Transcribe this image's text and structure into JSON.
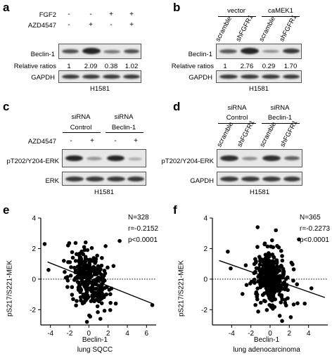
{
  "panels": {
    "a": {
      "letter": "a",
      "conditions": [
        "FGF2",
        "AZD4547"
      ],
      "fgf2_signs": [
        "-",
        "-",
        "+",
        "+"
      ],
      "azd_signs": [
        "-",
        "+",
        "-",
        "+"
      ],
      "row1": "Beclin-1",
      "ratio_label": "Relative ratios",
      "ratios": [
        "1",
        "2.09",
        "0.38",
        "1.02"
      ],
      "row2": "GAPDH",
      "cell_line": "H1581"
    },
    "b": {
      "letter": "b",
      "groups": [
        "vector",
        "caMEK1"
      ],
      "lanes": [
        "scramble",
        "shFGFR1",
        "scramble",
        "shFGFR1"
      ],
      "row1": "Beclin-1",
      "ratio_label": "Relative ratios",
      "ratios": [
        "1",
        "2.76",
        "0.29",
        "1.70"
      ],
      "row2": "GAPDH",
      "cell_line": "H1581"
    },
    "c": {
      "letter": "c",
      "groups": [
        {
          "line1": "siRNA",
          "line2": "Control"
        },
        {
          "line1": "siRNA",
          "line2": "Beclin-1"
        }
      ],
      "condition": "AZD4547",
      "signs": [
        "-",
        "+",
        "-",
        "+"
      ],
      "row1": "pT202/Y204-ERK",
      "row2": "ERK",
      "cell_line": "H1581"
    },
    "d": {
      "letter": "d",
      "groups": [
        {
          "line1": "siRNA",
          "line2": "Control"
        },
        {
          "line1": "siRNA",
          "line2": "Beclin-1"
        }
      ],
      "lanes": [
        "scramble",
        "shFGFR1",
        "scramble",
        "shFGFR1"
      ],
      "row1": "pT202/Y204-ERK",
      "row2": "GAPDH",
      "cell_line": "H1581"
    },
    "e": {
      "letter": "e",
      "ylabel": "pS217/S221-MEK",
      "xlabel1": "Beclin-1",
      "xlabel2": "lung SQCC",
      "stats": [
        "N=328",
        "r=-0.2152",
        "p<0.0001"
      ]
    },
    "f": {
      "letter": "f",
      "ylabel": "pS217/S221-MEK",
      "xlabel1": "Beclin-1",
      "xlabel2": "lung adenocarcinoma",
      "stats": [
        "N=365",
        "r=-0.2273",
        "p<0.0001"
      ]
    }
  },
  "chart_data": [
    {
      "type": "scatter",
      "panel": "e",
      "xlabel": "Beclin-1 lung SQCC",
      "ylabel": "pS217/S221-MEK",
      "xlim": [
        -5,
        7
      ],
      "ylim": [
        -3,
        4
      ],
      "xticks": [
        -4,
        -2,
        0,
        2,
        4,
        6
      ],
      "yticks": [
        -2,
        0,
        2,
        4
      ],
      "n": 328,
      "r": -0.2152,
      "p": "<0.0001",
      "regression": {
        "slope": -0.25,
        "intercept": 0.05
      },
      "reference_line_y": 0,
      "outliers": [
        [
          -4.6,
          2.3
        ],
        [
          3.2,
          2.5
        ],
        [
          6.6,
          -1.7
        ],
        [
          -4.2,
          0.6
        ],
        [
          2.8,
          -1.6
        ],
        [
          1.2,
          -2.6
        ],
        [
          -0.2,
          -2.8
        ],
        [
          -2.6,
          1.2
        ]
      ]
    },
    {
      "type": "scatter",
      "panel": "f",
      "xlabel": "Beclin-1 lung adenocarcinoma",
      "ylabel": "pS217/S221-MEK",
      "xlim": [
        -6,
        6
      ],
      "ylim": [
        -3,
        4
      ],
      "xticks": [
        -4,
        -2,
        0,
        2,
        4
      ],
      "yticks": [
        -2,
        0,
        2,
        4
      ],
      "n": 365,
      "r": -0.2273,
      "p": "<0.0001",
      "regression": {
        "slope": -0.22,
        "intercept": 0.05
      },
      "reference_line_y": 0,
      "outliers": [
        [
          -4.4,
          1.8
        ],
        [
          -4.1,
          0.7
        ],
        [
          3.0,
          2.6
        ],
        [
          4.3,
          -0.6
        ],
        [
          3.6,
          -1.6
        ],
        [
          1.0,
          -2.4
        ],
        [
          0.6,
          3.2
        ],
        [
          -1.3,
          3.4
        ]
      ]
    }
  ]
}
